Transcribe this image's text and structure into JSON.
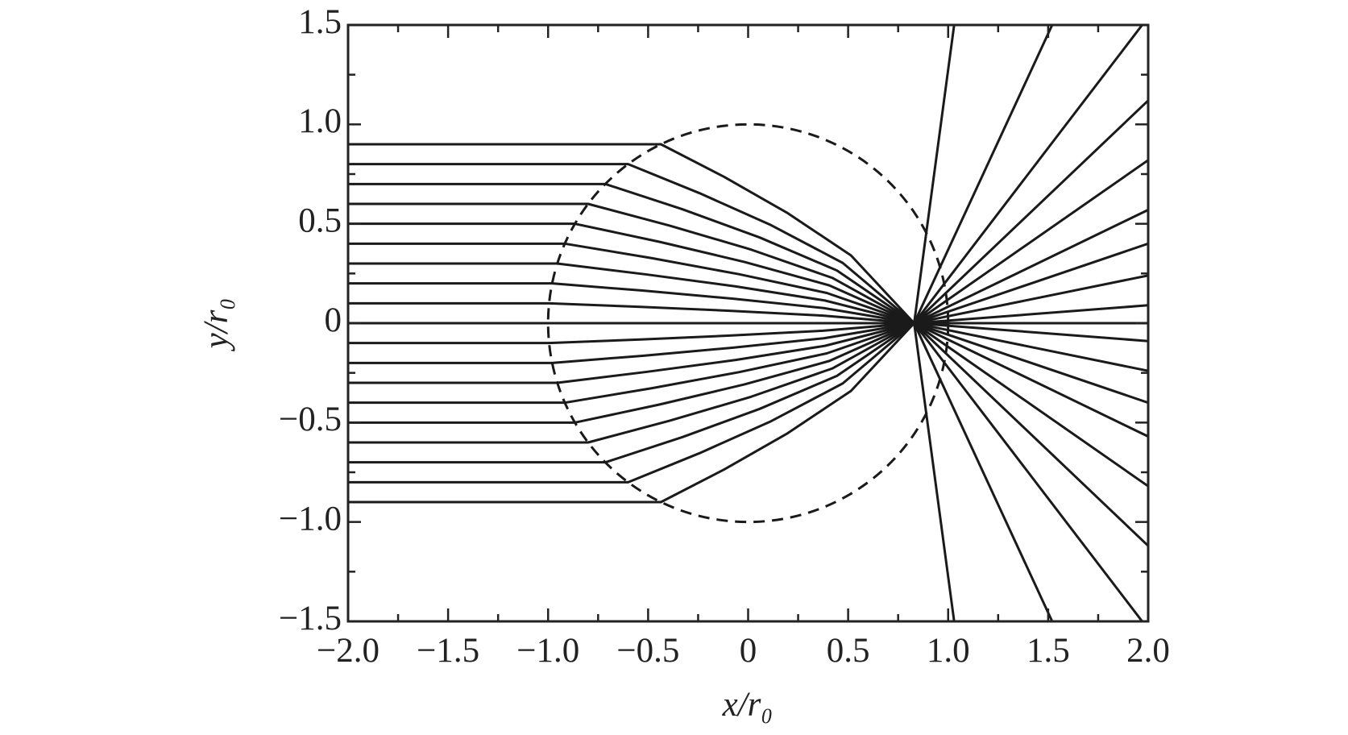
{
  "chart_data": {
    "type": "line",
    "xlabel": "x/r₀",
    "ylabel": "y/r₀",
    "color": "#1a1a1a",
    "xlim": [
      -2,
      2
    ],
    "ylim": [
      -1.5,
      1.5
    ],
    "xticks": [
      {
        "value": -2,
        "label": "−2.0"
      },
      {
        "value": -1.5,
        "label": "−1.5"
      },
      {
        "value": -1,
        "label": "−1.0"
      },
      {
        "value": -0.5,
        "label": "−0.5"
      },
      0,
      0.5,
      {
        "value": 1,
        "label": "1.0"
      },
      1.5,
      {
        "value": 2,
        "label": "2.0"
      }
    ],
    "yticks": [
      {
        "value": -1.5,
        "label": "−1.5"
      },
      {
        "value": -1,
        "label": "−1.0"
      },
      {
        "value": -0.5,
        "label": "−0.5"
      },
      0,
      0.5,
      {
        "value": 1,
        "label": "1.0"
      },
      1.5
    ],
    "xminorticks": [
      -1.75,
      -1.25,
      -0.75,
      -0.25,
      0.25,
      0.75,
      1.25,
      1.75
    ],
    "yminorticks": [
      -1.25,
      -0.75,
      -0.25,
      0.25,
      0.75,
      1.25
    ],
    "circle": {
      "center": [
        0,
        0
      ],
      "radius": 1,
      "dashed": true
    },
    "series": [
      {
        "x": [
          -2,
          -0.436,
          -0.12,
          0.197,
          0.514,
          0.83,
          1.03
        ],
        "values": [
          0.9,
          0.9,
          0.736,
          0.554,
          0.341,
          0,
          -1.5
        ]
      },
      {
        "x": [
          -2,
          -0.6,
          -0.243,
          0.115,
          0.473,
          0.83,
          1.52
        ],
        "values": [
          0.8,
          0.8,
          0.654,
          0.493,
          0.303,
          0,
          -1.5
        ]
      },
      {
        "x": [
          -2,
          -0.714,
          -0.328,
          0.058,
          0.444,
          0.83,
          1.97
        ],
        "values": [
          0.7,
          0.7,
          0.573,
          0.431,
          0.265,
          0,
          -1.5
        ]
      },
      {
        "x": [
          -2,
          -0.8,
          -0.393,
          0.015,
          0.423,
          0.83,
          2
        ],
        "values": [
          0.6,
          0.6,
          0.491,
          0.37,
          0.227,
          0,
          -1.12
        ]
      },
      {
        "x": [
          -2,
          -0.866,
          -0.442,
          -0.018,
          0.406,
          0.83,
          2
        ],
        "values": [
          0.5,
          0.5,
          0.409,
          0.308,
          0.19,
          0,
          -0.82
        ]
      },
      {
        "x": [
          -2,
          -0.917,
          -0.48,
          -0.044,
          0.393,
          0.83,
          2
        ],
        "values": [
          0.4,
          0.4,
          0.327,
          0.246,
          0.152,
          0,
          -0.57
        ]
      },
      {
        "x": [
          -2,
          -0.954,
          -0.508,
          -0.062,
          0.384,
          0.83,
          2
        ],
        "values": [
          0.3,
          0.3,
          0.245,
          0.185,
          0.114,
          0,
          -0.4
        ]
      },
      {
        "x": [
          -2,
          -0.98,
          -0.528,
          -0.075,
          0.378,
          0.83,
          2
        ],
        "values": [
          0.2,
          0.2,
          0.164,
          0.123,
          0.076,
          0,
          -0.24
        ]
      },
      {
        "x": [
          -2,
          -0.995,
          -0.539,
          -0.083,
          0.374,
          0.83,
          2
        ],
        "values": [
          0.1,
          0.1,
          0.082,
          0.062,
          0.038,
          0,
          -0.09
        ]
      },
      {
        "x": [
          -2,
          2
        ],
        "values": [
          0,
          0
        ]
      },
      {
        "x": [
          -2,
          -0.995,
          -0.539,
          -0.083,
          0.374,
          0.83,
          2
        ],
        "values": [
          -0.1,
          -0.1,
          -0.082,
          -0.062,
          -0.038,
          0,
          0.09
        ]
      },
      {
        "x": [
          -2,
          -0.98,
          -0.528,
          -0.075,
          0.378,
          0.83,
          2
        ],
        "values": [
          -0.2,
          -0.2,
          -0.164,
          -0.123,
          -0.076,
          0,
          0.24
        ]
      },
      {
        "x": [
          -2,
          -0.954,
          -0.508,
          -0.062,
          0.384,
          0.83,
          2
        ],
        "values": [
          -0.3,
          -0.3,
          -0.245,
          -0.185,
          -0.114,
          0,
          0.4
        ]
      },
      {
        "x": [
          -2,
          -0.917,
          -0.48,
          -0.044,
          0.393,
          0.83,
          2
        ],
        "values": [
          -0.4,
          -0.4,
          -0.327,
          -0.246,
          -0.152,
          0,
          0.57
        ]
      },
      {
        "x": [
          -2,
          -0.866,
          -0.442,
          -0.018,
          0.406,
          0.83,
          2
        ],
        "values": [
          -0.5,
          -0.5,
          -0.409,
          -0.308,
          -0.19,
          0,
          0.82
        ]
      },
      {
        "x": [
          -2,
          -0.8,
          -0.393,
          0.015,
          0.423,
          0.83,
          2
        ],
        "values": [
          -0.6,
          -0.6,
          -0.491,
          -0.37,
          -0.227,
          0,
          1.12
        ]
      },
      {
        "x": [
          -2,
          -0.714,
          -0.328,
          0.058,
          0.444,
          0.83,
          1.97
        ],
        "values": [
          -0.7,
          -0.7,
          -0.573,
          -0.431,
          -0.265,
          0,
          1.5
        ]
      },
      {
        "x": [
          -2,
          -0.6,
          -0.243,
          0.115,
          0.473,
          0.83,
          1.52
        ],
        "values": [
          -0.8,
          -0.8,
          -0.654,
          -0.493,
          -0.303,
          0,
          1.5
        ]
      },
      {
        "x": [
          -2,
          -0.436,
          -0.12,
          0.197,
          0.514,
          0.83,
          1.03
        ],
        "values": [
          -0.9,
          -0.9,
          -0.736,
          -0.554,
          -0.341,
          0,
          1.5
        ]
      }
    ]
  }
}
